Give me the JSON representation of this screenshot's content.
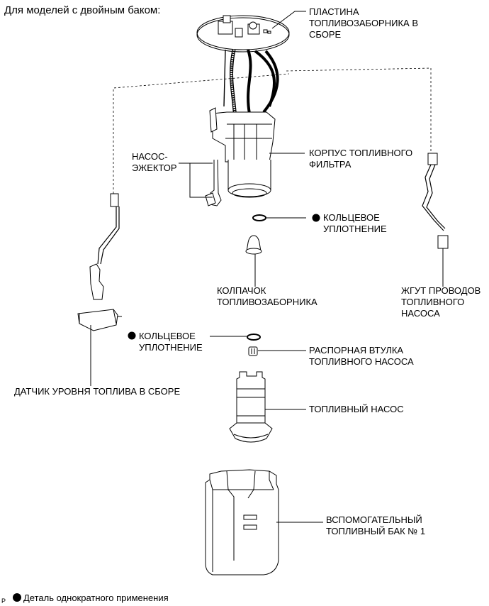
{
  "header": "Для моделей с двойным баком:",
  "labels": {
    "sender_gauge_plate": "ПЛАСТИНА\nТОПЛИВОЗАБОРНИКА В\nСБОРЕ",
    "jet_pump": "НАСОС-\nЭЖЕКТОР",
    "filter_case": "КОРПУС ТОПЛИВНОГО\nФИЛЬТРА",
    "o_ring_upper": "КОЛЬЦЕВОЕ\nУПЛОТНЕНИЕ",
    "suction_cap": "КОЛПАЧОК\nТОПЛИВОЗАБОРНИКА",
    "wire_harness": "ЖГУТ ПРОВОДОВ\nТОПЛИВНОГО\nНАСОСА",
    "o_ring_lower": "КОЛЬЦЕВОЕ\nУПЛОТНЕНИЕ",
    "pump_spacer": "РАСПОРНАЯ ВТУЛКА\nТОПЛИВНОГО НАСОСА",
    "fuel_level_sender": "ДАТЧИК УРОВНЯ ТОПЛИВА В СБОРЕ",
    "fuel_pump": "ТОПЛИВНЫЙ НАСОС",
    "sub_tank": "ВСПОМОГАТЕЛЬНЫЙ\nТОПЛИВНЫЙ БАК № 1"
  },
  "legend": "Деталь однократного применения",
  "corner_code": "P"
}
